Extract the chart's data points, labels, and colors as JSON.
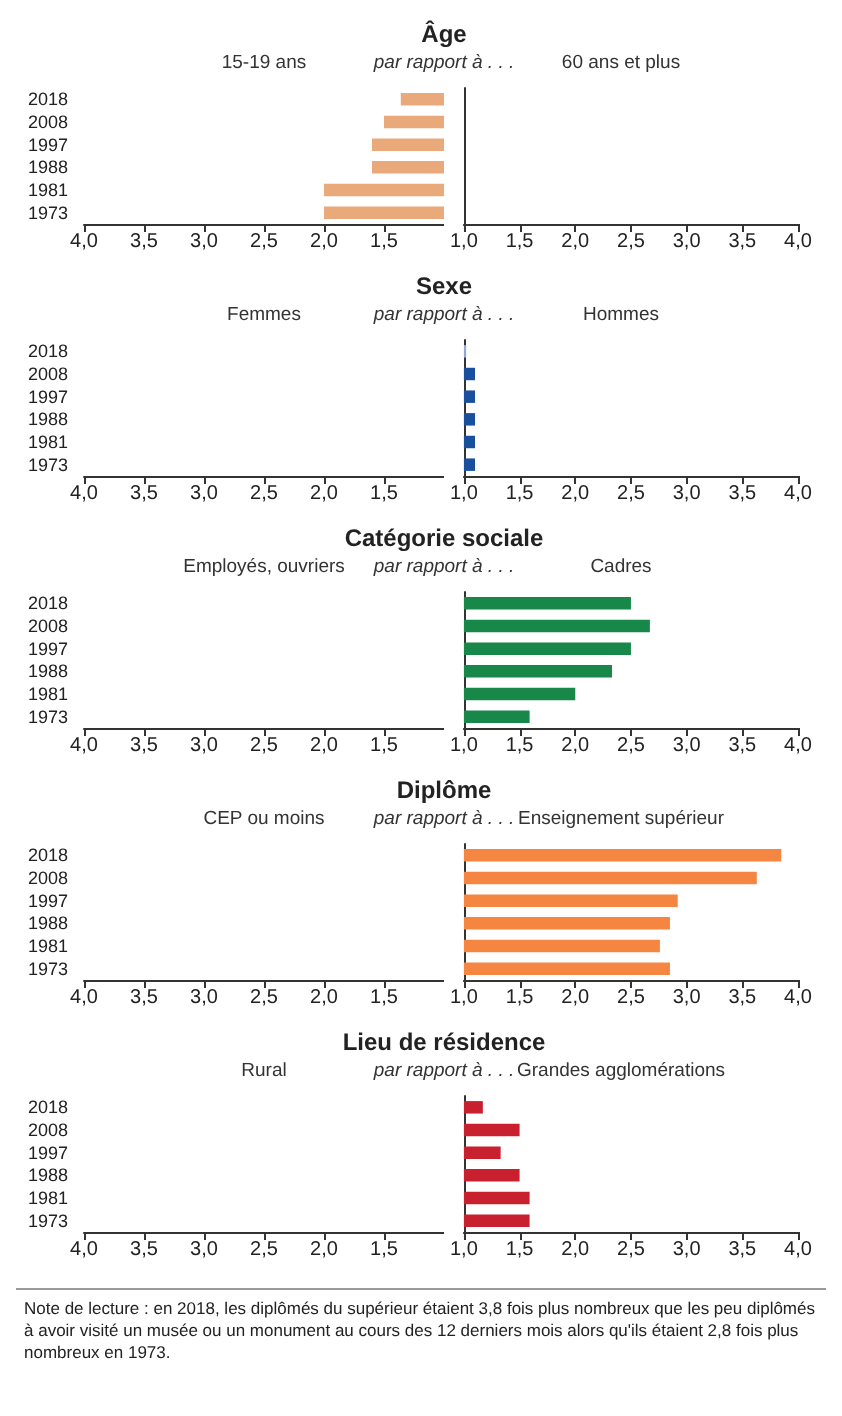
{
  "chart_data": [
    {
      "type": "bar",
      "orientation": "horizontal",
      "title": "Âge",
      "annotations": [
        "15-19 ans",
        "par rapport à . . ."
      ],
      "categories": [
        "2018",
        "2008",
        "1997",
        "1988",
        "1981",
        "1973"
      ],
      "values": [
        1.36,
        1.5,
        1.6,
        1.6,
        2.0,
        2.0
      ],
      "color": "#e9a97a",
      "xlim": [
        4,
        1
      ],
      "xticks": [
        {
          "value": 4,
          "label": "4,0"
        },
        {
          "value": 3.5,
          "label": "3,5"
        },
        {
          "value": 3,
          "label": "3,0"
        },
        {
          "value": 2.5,
          "label": "2,5"
        },
        {
          "value": 2,
          "label": "2,0"
        },
        {
          "value": 1.5,
          "label": "1,5"
        }
      ],
      "grid": false
    },
    {
      "type": "bar",
      "orientation": "horizontal",
      "annotations": [
        "60 ans et plus"
      ],
      "categories": [
        "2018",
        "2008",
        "1997",
        "1988",
        "1981",
        "1973"
      ],
      "values": [
        null,
        null,
        null,
        null,
        null,
        null
      ],
      "color": "#e9a97a",
      "xlim": [
        1,
        4
      ],
      "xticks": [
        {
          "value": 1,
          "label": "1,0"
        },
        {
          "value": 1.5,
          "label": "1,5"
        },
        {
          "value": 2,
          "label": "2,0"
        },
        {
          "value": 2.5,
          "label": "2,5"
        },
        {
          "value": 3,
          "label": "3,0"
        },
        {
          "value": 3.5,
          "label": "3,5"
        },
        {
          "value": 4,
          "label": "4,0"
        }
      ],
      "grid": false,
      "tick_labels": "x"
    },
    {
      "type": "bar",
      "orientation": "horizontal",
      "title": "Sexe",
      "annotations": [
        "Femmes",
        "par rapport à . . ."
      ],
      "categories": [
        "2018",
        "2008",
        "1997",
        "1988",
        "1981",
        "1973"
      ],
      "values": [
        null,
        null,
        null,
        null,
        null,
        null
      ],
      "color": "#1a4f9e",
      "xlim": [
        4,
        1
      ],
      "xticks": [
        {
          "value": 4,
          "label": "4,0"
        },
        {
          "value": 3.5,
          "label": "3,5"
        },
        {
          "value": 3,
          "label": "3,0"
        },
        {
          "value": 2.5,
          "label": "2,5"
        },
        {
          "value": 2,
          "label": "2,0"
        },
        {
          "value": 1.5,
          "label": "1,5"
        }
      ],
      "grid": false
    },
    {
      "type": "bar",
      "orientation": "horizontal",
      "annotations": [
        "Hommes"
      ],
      "categories": [
        "2018",
        "2008",
        "1997",
        "1988",
        "1981",
        "1973"
      ],
      "values": [
        1.02,
        1.1,
        1.1,
        1.1,
        1.1,
        1.1
      ],
      "colors": [
        "#8fa9de",
        "#1a4f9e",
        "#1a4f9e",
        "#1a4f9e",
        "#1a4f9e",
        "#1a4f9e"
      ],
      "xlim": [
        1,
        4
      ],
      "xticks": [
        {
          "value": 1,
          "label": "1,0"
        },
        {
          "value": 1.5,
          "label": "1,5"
        },
        {
          "value": 2,
          "label": "2,0"
        },
        {
          "value": 2.5,
          "label": "2,5"
        },
        {
          "value": 3,
          "label": "3,0"
        },
        {
          "value": 3.5,
          "label": "3,5"
        },
        {
          "value": 4,
          "label": "4,0"
        }
      ],
      "grid": false,
      "tick_labels": "x"
    },
    {
      "type": "bar",
      "orientation": "horizontal",
      "title": "Catégorie sociale",
      "annotations": [
        "Employés, ouvriers",
        "par rapport à . . ."
      ],
      "categories": [
        "2018",
        "2008",
        "1997",
        "1988",
        "1981",
        "1973"
      ],
      "values": [
        null,
        null,
        null,
        null,
        null,
        null
      ],
      "color": "#17884a",
      "xlim": [
        4,
        1
      ],
      "xticks": [
        {
          "value": 4,
          "label": "4,0"
        },
        {
          "value": 3.5,
          "label": "3,5"
        },
        {
          "value": 3,
          "label": "3,0"
        },
        {
          "value": 2.5,
          "label": "2,5"
        },
        {
          "value": 2,
          "label": "2,0"
        },
        {
          "value": 1.5,
          "label": "1,5"
        }
      ],
      "grid": false
    },
    {
      "type": "bar",
      "orientation": "horizontal",
      "annotations": [
        "Cadres"
      ],
      "categories": [
        "2018",
        "2008",
        "1997",
        "1988",
        "1981",
        "1973"
      ],
      "values": [
        2.5,
        2.67,
        2.5,
        2.33,
        2.0,
        1.59
      ],
      "color": "#17884a",
      "xlim": [
        1,
        4
      ],
      "xticks": [
        {
          "value": 1,
          "label": "1,0"
        },
        {
          "value": 1.5,
          "label": "1,5"
        },
        {
          "value": 2,
          "label": "2,0"
        },
        {
          "value": 2.5,
          "label": "2,5"
        },
        {
          "value": 3,
          "label": "3,0"
        },
        {
          "value": 3.5,
          "label": "3,5"
        },
        {
          "value": 4,
          "label": "4,0"
        }
      ],
      "grid": false,
      "tick_labels": "x"
    },
    {
      "type": "bar",
      "orientation": "horizontal",
      "title": "Diplôme",
      "annotations": [
        "CEP ou moins",
        "par rapport à . . ."
      ],
      "categories": [
        "2018",
        "2008",
        "1997",
        "1988",
        "1981",
        "1973"
      ],
      "values": [
        null,
        null,
        null,
        null,
        null,
        null
      ],
      "color": "#f58642",
      "xlim": [
        4,
        1
      ],
      "xticks": [
        {
          "value": 4,
          "label": "4,0"
        },
        {
          "value": 3.5,
          "label": "3,5"
        },
        {
          "value": 3,
          "label": "3,0"
        },
        {
          "value": 2.5,
          "label": "2,5"
        },
        {
          "value": 2,
          "label": "2,0"
        },
        {
          "value": 1.5,
          "label": "1,5"
        }
      ],
      "grid": false
    },
    {
      "type": "bar",
      "orientation": "horizontal",
      "annotations": [
        "Enseignement supérieur"
      ],
      "categories": [
        "2018",
        "2008",
        "1997",
        "1988",
        "1981",
        "1973"
      ],
      "values": [
        3.85,
        3.63,
        2.92,
        2.85,
        2.76,
        2.85
      ],
      "color": "#f58642",
      "xlim": [
        1,
        4
      ],
      "xticks": [
        {
          "value": 1,
          "label": "1,0"
        },
        {
          "value": 1.5,
          "label": "1,5"
        },
        {
          "value": 2,
          "label": "2,0"
        },
        {
          "value": 2.5,
          "label": "2,5"
        },
        {
          "value": 3,
          "label": "3,0"
        },
        {
          "value": 3.5,
          "label": "3,5"
        },
        {
          "value": 4,
          "label": "4,0"
        }
      ],
      "grid": false,
      "tick_labels": "x"
    },
    {
      "type": "bar",
      "orientation": "horizontal",
      "title": "Lieu de résidence",
      "annotations": [
        "Rural",
        "par rapport à . . .",
        "Note de lecture : en 2018, les diplômés du supérieur étaient 3,8 fois plus nombreux que les peu diplômés à avoir visité un musée ou un monument au cours des 12 derniers mois alors qu'ils étaient 2,8 fois plus nombreux en 1973."
      ],
      "categories": [
        "2018",
        "2008",
        "1997",
        "1988",
        "1981",
        "1973"
      ],
      "values": [
        null,
        null,
        null,
        null,
        null,
        null
      ],
      "color": "#c8202f",
      "xlim": [
        4,
        1
      ],
      "xticks": [
        {
          "value": 4,
          "label": "4,0"
        },
        {
          "value": 3.5,
          "label": "3,5"
        },
        {
          "value": 3,
          "label": "3,0"
        },
        {
          "value": 2.5,
          "label": "2,5"
        },
        {
          "value": 2,
          "label": "2,0"
        },
        {
          "value": 1.5,
          "label": "1,5"
        }
      ],
      "grid": false
    },
    {
      "type": "bar",
      "orientation": "horizontal",
      "annotations": [
        "Grandes agglomérations"
      ],
      "categories": [
        "2018",
        "2008",
        "1997",
        "1988",
        "1981",
        "1973"
      ],
      "values": [
        1.17,
        1.5,
        1.33,
        1.5,
        1.59,
        1.59
      ],
      "color": "#c8202f",
      "xlim": [
        1,
        4
      ],
      "xticks": [
        {
          "value": 1,
          "label": "1,0"
        },
        {
          "value": 1.5,
          "label": "1,5"
        },
        {
          "value": 2,
          "label": "2,0"
        },
        {
          "value": 2.5,
          "label": "2,5"
        },
        {
          "value": 3,
          "label": "3,0"
        },
        {
          "value": 3.5,
          "label": "3,5"
        },
        {
          "value": 4,
          "label": "4,0"
        }
      ],
      "grid": false,
      "tick_labels": "x"
    }
  ]
}
